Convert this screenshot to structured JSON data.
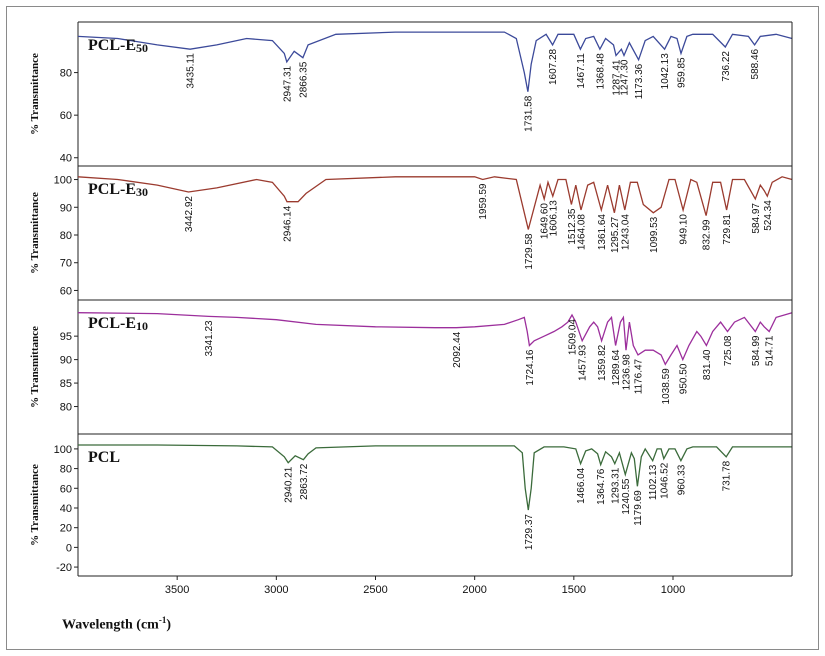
{
  "chart_data": {
    "type": "line",
    "xlabel": "Wavelength (cm",
    "xlabel_sup": "-1",
    "xlabel_end": ")",
    "x_reversed": true,
    "xlim": [
      4000,
      400
    ],
    "xticks": [
      3500,
      3000,
      2500,
      2000,
      1500,
      1000
    ],
    "panels": [
      {
        "name": "PCL-E",
        "name_sub": "50",
        "color": "#3c4a9a",
        "ylabel": "% Transmittance",
        "ylim": [
          38,
          100
        ],
        "yticks": [
          40,
          60,
          80
        ],
        "points": [
          [
            4000,
            97
          ],
          [
            3800,
            96
          ],
          [
            3600,
            93
          ],
          [
            3435,
            91
          ],
          [
            3300,
            93
          ],
          [
            3150,
            96
          ],
          [
            3020,
            95
          ],
          [
            2960,
            89
          ],
          [
            2947,
            85
          ],
          [
            2910,
            90
          ],
          [
            2866,
            87
          ],
          [
            2840,
            93
          ],
          [
            2700,
            98
          ],
          [
            2400,
            99
          ],
          [
            2000,
            99
          ],
          [
            1850,
            99
          ],
          [
            1790,
            96
          ],
          [
            1750,
            80
          ],
          [
            1731.58,
            71
          ],
          [
            1715,
            84
          ],
          [
            1690,
            95
          ],
          [
            1640,
            98
          ],
          [
            1607.28,
            93
          ],
          [
            1580,
            98
          ],
          [
            1500,
            98
          ],
          [
            1467.11,
            91
          ],
          [
            1440,
            96
          ],
          [
            1400,
            97
          ],
          [
            1368.48,
            91
          ],
          [
            1340,
            96
          ],
          [
            1300,
            93
          ],
          [
            1287.41,
            88
          ],
          [
            1260,
            91
          ],
          [
            1247.3,
            88
          ],
          [
            1220,
            94
          ],
          [
            1173.36,
            86
          ],
          [
            1140,
            95
          ],
          [
            1100,
            97
          ],
          [
            1042.13,
            91
          ],
          [
            1010,
            97
          ],
          [
            980,
            96
          ],
          [
            959.85,
            89
          ],
          [
            930,
            97
          ],
          [
            900,
            98
          ],
          [
            800,
            98
          ],
          [
            736.22,
            92
          ],
          [
            700,
            98
          ],
          [
            620,
            97
          ],
          [
            588.46,
            93
          ],
          [
            560,
            97
          ],
          [
            480,
            98
          ],
          [
            400,
            96
          ]
        ],
        "peaks": [
          3435.11,
          2947.31,
          2866.35,
          1731.58,
          1607.28,
          1467.11,
          1368.48,
          1287.41,
          1247.3,
          1173.36,
          1042.13,
          959.85,
          736.22,
          588.46
        ],
        "peak_labels": [
          "3435.11",
          "2947.31",
          "2866.35",
          "1731.58",
          "1607.28",
          "1467.11",
          "1368.48",
          "1287.41",
          "1247.30",
          "1173.36",
          "1042.13",
          "959.85",
          "736.22",
          "588.46"
        ]
      },
      {
        "name": "PCL-E",
        "name_sub": "30",
        "color": "#9b3b2f",
        "ylabel": "% Transmittance",
        "ylim": [
          58,
          102
        ],
        "yticks": [
          60,
          70,
          80,
          90,
          100
        ],
        "points": [
          [
            4000,
            101
          ],
          [
            3800,
            100
          ],
          [
            3600,
            98
          ],
          [
            3442.92,
            95.5
          ],
          [
            3300,
            97
          ],
          [
            3100,
            100
          ],
          [
            3020,
            99
          ],
          [
            2960,
            94
          ],
          [
            2946.14,
            92
          ],
          [
            2890,
            92
          ],
          [
            2850,
            95
          ],
          [
            2750,
            100
          ],
          [
            2400,
            101
          ],
          [
            2000,
            101
          ],
          [
            1959.59,
            100
          ],
          [
            1900,
            101
          ],
          [
            1790,
            100
          ],
          [
            1750,
            88
          ],
          [
            1729.58,
            82
          ],
          [
            1700,
            90
          ],
          [
            1670,
            98
          ],
          [
            1649.6,
            93
          ],
          [
            1630,
            99
          ],
          [
            1606.13,
            94
          ],
          [
            1580,
            100
          ],
          [
            1540,
            100
          ],
          [
            1512.35,
            91
          ],
          [
            1490,
            98
          ],
          [
            1464.08,
            89
          ],
          [
            1430,
            98
          ],
          [
            1400,
            99
          ],
          [
            1361.64,
            89
          ],
          [
            1330,
            98
          ],
          [
            1295.27,
            88
          ],
          [
            1270,
            98
          ],
          [
            1243.04,
            89
          ],
          [
            1215,
            99
          ],
          [
            1180,
            99
          ],
          [
            1150,
            91
          ],
          [
            1099.53,
            88
          ],
          [
            1060,
            90
          ],
          [
            1020,
            100
          ],
          [
            990,
            100
          ],
          [
            949.1,
            89
          ],
          [
            910,
            100
          ],
          [
            880,
            99
          ],
          [
            832.99,
            87
          ],
          [
            800,
            99
          ],
          [
            760,
            99
          ],
          [
            729.81,
            89
          ],
          [
            700,
            100
          ],
          [
            640,
            100
          ],
          [
            584.97,
            93
          ],
          [
            560,
            98
          ],
          [
            540,
            96
          ],
          [
            524.34,
            94
          ],
          [
            500,
            99
          ],
          [
            450,
            101
          ],
          [
            400,
            100
          ]
        ],
        "peaks": [
          3442.92,
          2946.14,
          1959.59,
          1729.58,
          1649.6,
          1606.13,
          1512.35,
          1464.08,
          1361.64,
          1295.27,
          1243.04,
          1099.53,
          949.1,
          832.99,
          729.81,
          584.97,
          524.34
        ],
        "peak_labels": [
          "3442.92",
          "2946.14",
          "1959.59",
          "1729.58",
          "1649.60",
          "1606.13",
          "1512.35",
          "1464.08",
          "1361.64",
          "1295.27",
          "1243.04",
          "1099.53",
          "949.10",
          "832.99",
          "729.81",
          "584.97",
          "524.34"
        ]
      },
      {
        "name": "PCL-E",
        "name_sub": "10",
        "color": "#9c2f9c",
        "ylabel": "% Transmittance",
        "ylim": [
          75,
          101
        ],
        "yticks": [
          80,
          85,
          90,
          95
        ],
        "points": [
          [
            4000,
            100
          ],
          [
            3600,
            99.8
          ],
          [
            3341.23,
            99.2
          ],
          [
            3200,
            99
          ],
          [
            3000,
            98.5
          ],
          [
            2800,
            97.5
          ],
          [
            2500,
            97
          ],
          [
            2200,
            96.8
          ],
          [
            2092.44,
            96.8
          ],
          [
            2000,
            97
          ],
          [
            1850,
            97.5
          ],
          [
            1780,
            98.5
          ],
          [
            1750,
            99
          ],
          [
            1735,
            96
          ],
          [
            1724.16,
            93
          ],
          [
            1700,
            94
          ],
          [
            1650,
            95
          ],
          [
            1600,
            96
          ],
          [
            1560,
            97
          ],
          [
            1530,
            98
          ],
          [
            1509.04,
            99.5
          ],
          [
            1490,
            98
          ],
          [
            1457.93,
            94
          ],
          [
            1420,
            97
          ],
          [
            1400,
            98
          ],
          [
            1380,
            97
          ],
          [
            1359.82,
            94
          ],
          [
            1330,
            98
          ],
          [
            1310,
            99
          ],
          [
            1289.64,
            93
          ],
          [
            1265,
            98
          ],
          [
            1250,
            99
          ],
          [
            1236.98,
            92
          ],
          [
            1220,
            98
          ],
          [
            1200,
            93
          ],
          [
            1176.47,
            91
          ],
          [
            1140,
            92
          ],
          [
            1100,
            92
          ],
          [
            1060,
            91
          ],
          [
            1038.59,
            89
          ],
          [
            1010,
            91
          ],
          [
            980,
            93
          ],
          [
            950.5,
            90
          ],
          [
            920,
            93
          ],
          [
            880,
            96
          ],
          [
            860,
            95
          ],
          [
            831.4,
            93
          ],
          [
            800,
            96
          ],
          [
            760,
            98
          ],
          [
            725.08,
            96
          ],
          [
            690,
            98
          ],
          [
            640,
            99
          ],
          [
            584.99,
            96
          ],
          [
            560,
            98
          ],
          [
            540,
            97
          ],
          [
            514.71,
            96
          ],
          [
            480,
            99
          ],
          [
            400,
            100
          ]
        ],
        "peaks": [
          3341.23,
          2092.44,
          1724.16,
          1509.04,
          1457.93,
          1359.82,
          1289.64,
          1236.98,
          1176.47,
          1038.59,
          950.5,
          831.4,
          725.08,
          584.99,
          514.71
        ],
        "peak_labels": [
          "3341.23",
          "2092.44",
          "1724.16",
          "1509.04",
          "1457.93",
          "1359.82",
          "1289.64",
          "1236.98",
          "1176.47",
          "1038.59",
          "950.50",
          "831.40",
          "725.08",
          "584.99",
          "514.71"
        ]
      },
      {
        "name": "PCL",
        "name_sub": "",
        "color": "#3b6b3b",
        "ylabel": "% Transmittance",
        "ylim": [
          -25,
          107
        ],
        "yticks": [
          -20,
          0,
          20,
          40,
          60,
          80,
          100
        ],
        "points": [
          [
            4000,
            104
          ],
          [
            3600,
            104
          ],
          [
            3200,
            103
          ],
          [
            3020,
            102
          ],
          [
            2960,
            92
          ],
          [
            2940.21,
            86
          ],
          [
            2905,
            93
          ],
          [
            2863.72,
            89
          ],
          [
            2840,
            95
          ],
          [
            2800,
            101
          ],
          [
            2500,
            103
          ],
          [
            2000,
            103
          ],
          [
            1800,
            103
          ],
          [
            1760,
            96
          ],
          [
            1745,
            60
          ],
          [
            1729.37,
            38
          ],
          [
            1715,
            60
          ],
          [
            1700,
            96
          ],
          [
            1650,
            102
          ],
          [
            1550,
            102
          ],
          [
            1490,
            100
          ],
          [
            1466.04,
            85
          ],
          [
            1440,
            98
          ],
          [
            1410,
            100
          ],
          [
            1380,
            95
          ],
          [
            1364.76,
            84
          ],
          [
            1340,
            97
          ],
          [
            1310,
            92
          ],
          [
            1293.31,
            85
          ],
          [
            1270,
            96
          ],
          [
            1240.55,
            74
          ],
          [
            1210,
            96
          ],
          [
            1195,
            90
          ],
          [
            1179.69,
            62
          ],
          [
            1160,
            92
          ],
          [
            1140,
            100
          ],
          [
            1102.13,
            88
          ],
          [
            1080,
            100
          ],
          [
            1060,
            100
          ],
          [
            1046.52,
            90
          ],
          [
            1020,
            100
          ],
          [
            990,
            100
          ],
          [
            960.33,
            88
          ],
          [
            930,
            100
          ],
          [
            900,
            102
          ],
          [
            780,
            102
          ],
          [
            731.78,
            92
          ],
          [
            700,
            102
          ],
          [
            400,
            102
          ]
        ],
        "peaks": [
          2940.21,
          2863.72,
          1729.37,
          1466.04,
          1364.76,
          1293.31,
          1240.55,
          1179.69,
          1102.13,
          1046.52,
          960.33,
          731.78
        ],
        "peak_labels": [
          "2940.21",
          "2863.72",
          "1729.37",
          "1466.04",
          "1364.76",
          "1293.31",
          "1240.55",
          "1179.69",
          "1102.13",
          "1046.52",
          "960.33",
          "731.78"
        ]
      }
    ]
  }
}
